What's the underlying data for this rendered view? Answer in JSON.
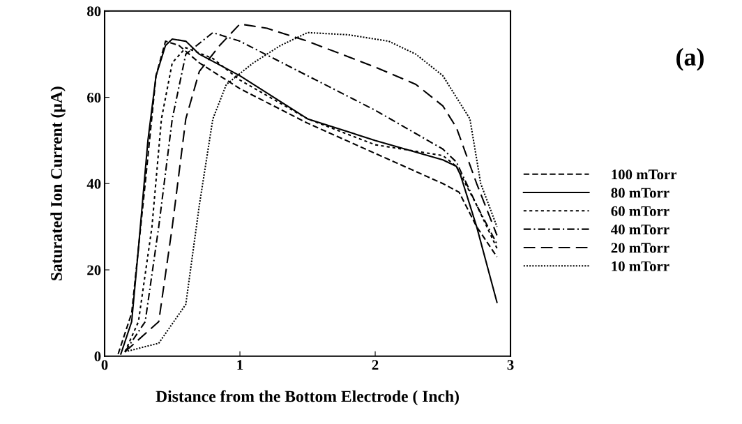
{
  "chart_data": {
    "type": "line",
    "xlabel": "Distance from the Bottom Electrode ( Inch)",
    "ylabel": "Saturated Ion Current (μA)",
    "annotations": [
      "(a)"
    ],
    "xlim": [
      0,
      3
    ],
    "ylim": [
      0,
      80
    ],
    "xticks": [
      0,
      1,
      2,
      3
    ],
    "yticks": [
      0,
      20,
      40,
      60,
      80
    ],
    "grid": false,
    "legend": "right",
    "marker": "none",
    "series": [
      {
        "name": "100 mTorr",
        "color": "#000000",
        "line_style": "dashed",
        "x": [
          0.1,
          0.2,
          0.3,
          0.38,
          0.45,
          0.55,
          0.7,
          1.0,
          1.5,
          2.0,
          2.5,
          2.62,
          2.75,
          2.9
        ],
        "values": [
          0.5,
          10,
          40,
          65,
          73,
          72,
          68,
          62,
          54,
          47,
          40,
          38,
          30,
          23
        ]
      },
      {
        "name": "80 mTorr",
        "color": "#000000",
        "line_style": "solid",
        "x": [
          0.12,
          0.2,
          0.25,
          0.32,
          0.38,
          0.45,
          0.5,
          0.6,
          0.7,
          1.0,
          1.5,
          2.0,
          2.5,
          2.6,
          2.63,
          2.75,
          2.9
        ],
        "values": [
          0.5,
          8,
          25,
          50,
          65,
          72,
          73.5,
          73,
          70,
          65,
          55,
          50,
          45.5,
          44,
          42,
          30,
          12.5
        ]
      },
      {
        "name": "60 mTorr",
        "color": "#000000",
        "line_style": "dotted",
        "x": [
          0.15,
          0.25,
          0.35,
          0.42,
          0.5,
          0.6,
          0.8,
          1.0,
          1.5,
          2.0,
          2.5,
          2.6,
          2.75,
          2.9
        ],
        "values": [
          1,
          8,
          30,
          55,
          68,
          71.5,
          69,
          64,
          55,
          49,
          46.5,
          44,
          35,
          25
        ]
      },
      {
        "name": "40 mTorr",
        "color": "#000000",
        "line_style": "dashdot",
        "x": [
          0.15,
          0.3,
          0.4,
          0.5,
          0.6,
          0.8,
          1.0,
          1.5,
          2.0,
          2.5,
          2.6,
          2.75,
          2.9
        ],
        "values": [
          1,
          8,
          30,
          55,
          70,
          75,
          73,
          65,
          57,
          48,
          45,
          35,
          26
        ]
      },
      {
        "name": "20 mTorr",
        "color": "#000000",
        "line_style": "longdash",
        "x": [
          0.15,
          0.4,
          0.5,
          0.6,
          0.7,
          0.85,
          1.0,
          1.2,
          1.5,
          2.0,
          2.3,
          2.5,
          2.6,
          2.75,
          2.9
        ],
        "values": [
          1,
          8,
          30,
          55,
          66,
          72,
          77,
          76,
          73,
          67,
          63,
          58,
          53,
          40,
          28
        ]
      },
      {
        "name": "10 mTorr",
        "color": "#000000",
        "line_style": "finedot",
        "x": [
          0.15,
          0.4,
          0.6,
          0.7,
          0.8,
          0.9,
          1.1,
          1.3,
          1.5,
          1.8,
          2.1,
          2.3,
          2.5,
          2.6,
          2.7,
          2.78,
          2.9
        ],
        "values": [
          1,
          3,
          12,
          35,
          55,
          63,
          68,
          72,
          75,
          74.5,
          73,
          70,
          65,
          60,
          55,
          40,
          30
        ]
      }
    ]
  }
}
